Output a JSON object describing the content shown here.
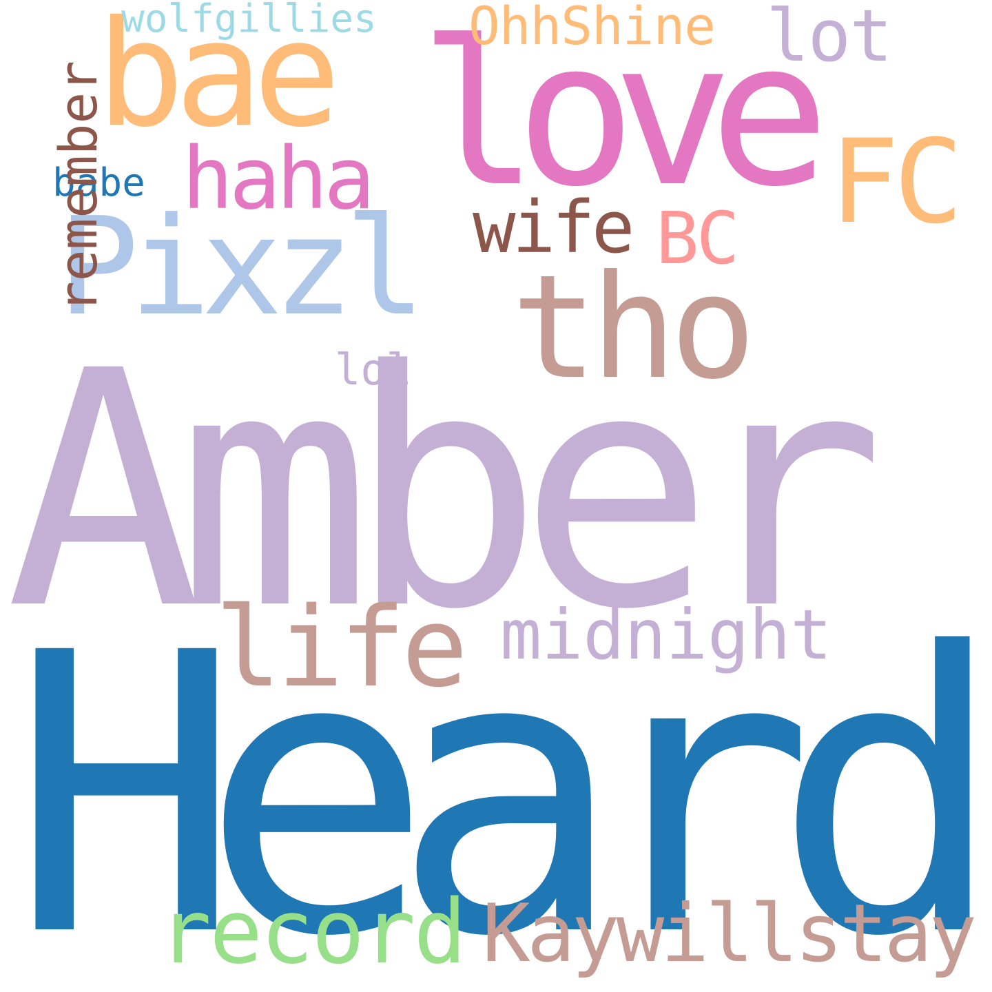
{
  "words": {
    "amber": {
      "text": "Amber",
      "color": "#c5b0d5"
    },
    "heard": {
      "text": "Heard",
      "color": "#1f77b4"
    },
    "love": {
      "text": "love",
      "color": "#e377c2"
    },
    "bae": {
      "text": "bae",
      "color": "#ffbb78"
    },
    "pixzl": {
      "text": "Pixzl",
      "color": "#aec7e8"
    },
    "tho": {
      "text": "tho",
      "color": "#c49c94"
    },
    "fc": {
      "text": "FC",
      "color": "#ffbb78"
    },
    "haha": {
      "text": "haha",
      "color": "#e377c2"
    },
    "life": {
      "text": "life",
      "color": "#c49c94"
    },
    "midnight": {
      "text": "midnight",
      "color": "#c5b0d5"
    },
    "record": {
      "text": "record",
      "color": "#98df8a"
    },
    "kaywillstay": {
      "text": "Kaywillstay",
      "color": "#c49c94"
    },
    "wife": {
      "text": "wife",
      "color": "#8c564b"
    },
    "bc": {
      "text": "BC",
      "color": "#ff9896"
    },
    "lot": {
      "text": "lot",
      "color": "#c5b0d5"
    },
    "ohhshine": {
      "text": "OhhShine",
      "color": "#ffbb78"
    },
    "wolfgillies": {
      "text": "wolfgillies",
      "color": "#9edae5"
    },
    "babe": {
      "text": "babe",
      "color": "#1f77b4"
    },
    "lol": {
      "text": "lol",
      "color": "#c5b0d5"
    },
    "remember": {
      "text": "remember",
      "color": "#8c564b"
    }
  }
}
